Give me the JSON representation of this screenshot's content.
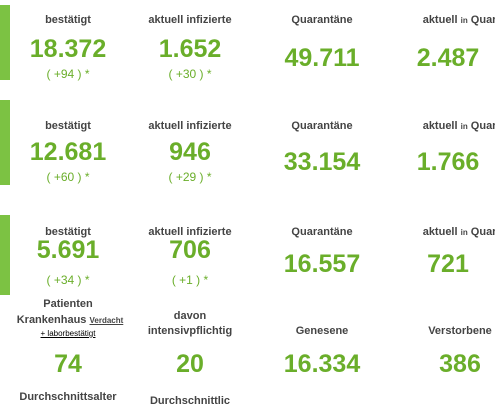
{
  "sections": [
    {
      "cells": [
        {
          "label": "bestätigt",
          "value": "18.372",
          "delta": "( +94 ) *"
        },
        {
          "label": "aktuell infizierte",
          "value": "1.652",
          "delta": "( +30 ) *"
        },
        {
          "label": "Quarantäne",
          "value": "49.711"
        },
        {
          "label_parts": [
            "aktuell",
            "in",
            "Quaran"
          ],
          "value": "2.487"
        }
      ]
    },
    {
      "cells": [
        {
          "label": "bestätigt",
          "value": "12.681",
          "delta": "( +60 ) *"
        },
        {
          "label": "aktuell infizierte",
          "value": "946",
          "delta": "( +29 ) *"
        },
        {
          "label": "Quarantäne",
          "value": "33.154"
        },
        {
          "label_parts": [
            "aktuell",
            "in",
            "Quaran"
          ],
          "value": "1.766"
        }
      ]
    },
    {
      "cells": [
        {
          "label": "bestätigt",
          "value": "5.691",
          "delta": "( +34 ) *"
        },
        {
          "label": "aktuell infizierte",
          "value": "706",
          "delta": "( +1 ) *"
        },
        {
          "label": "Quarantäne",
          "value": "16.557"
        },
        {
          "label_parts": [
            "aktuell",
            "in",
            "Quaran"
          ],
          "value": "721"
        }
      ]
    }
  ],
  "hospital": {
    "label_lines": [
      "Patienten",
      "Krankenhaus"
    ],
    "small_1": "Verdacht",
    "small_2": "+ laborbestätigt",
    "value": "74"
  },
  "intensive": {
    "label_lines": [
      "davon",
      "intensivpflichtig"
    ],
    "value": "20"
  },
  "recovered": {
    "label": "Genesene",
    "value": "16.334"
  },
  "deceased": {
    "label": "Verstorbene",
    "value": "386"
  },
  "footer": [
    "Durchschnittsalter",
    "Durchschnittlic"
  ]
}
